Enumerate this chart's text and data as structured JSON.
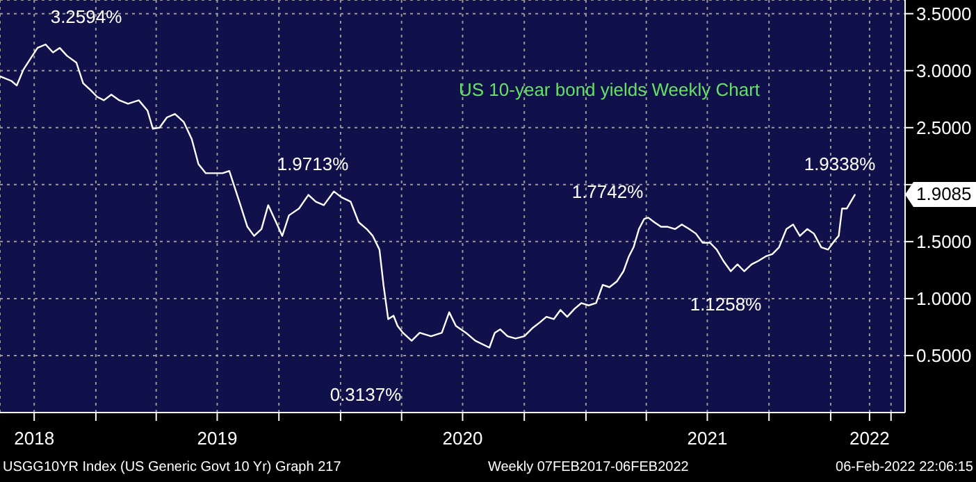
{
  "chart_data": {
    "type": "line",
    "title": "US 10-year bond yields Weekly Chart",
    "x": [
      "2018-08-11",
      "2018-08-28",
      "2018-09-05",
      "2018-09-15",
      "2018-09-26",
      "2018-10-06",
      "2018-10-18",
      "2018-10-29",
      "2018-11-08",
      "2018-11-19",
      "2018-12-03",
      "2018-12-13",
      "2018-12-24",
      "2019-01-03",
      "2019-01-13",
      "2019-01-24",
      "2019-02-05",
      "2019-02-18",
      "2019-03-06",
      "2019-03-19",
      "2019-03-27",
      "2019-04-06",
      "2019-04-17",
      "2019-04-29",
      "2019-05-12",
      "2019-05-24",
      "2019-06-03",
      "2019-06-14",
      "2019-06-28",
      "2019-07-09",
      "2019-07-19",
      "2019-08-03",
      "2019-08-15",
      "2019-08-25",
      "2019-09-05",
      "2019-09-15",
      "2019-09-26",
      "2019-10-06",
      "2019-10-16",
      "2019-10-31",
      "2019-11-14",
      "2019-11-25",
      "2019-12-07",
      "2019-12-22",
      "2020-01-02",
      "2020-01-16",
      "2020-01-28",
      "2020-02-09",
      "2020-02-18",
      "2020-02-28",
      "2020-03-05",
      "2020-03-12",
      "2020-03-20",
      "2020-03-26",
      "2020-04-03",
      "2020-04-16",
      "2020-04-28",
      "2020-05-15",
      "2020-05-31",
      "2020-06-11",
      "2020-06-21",
      "2020-07-06",
      "2020-07-20",
      "2020-08-10",
      "2020-08-18",
      "2020-08-26",
      "2020-09-06",
      "2020-09-18",
      "2020-10-01",
      "2020-10-13",
      "2020-10-24",
      "2020-11-03",
      "2020-11-14",
      "2020-11-24",
      "2020-12-04",
      "2020-12-15",
      "2020-12-25",
      "2021-01-05",
      "2021-01-16",
      "2021-01-26",
      "2021-02-05",
      "2021-02-16",
      "2021-02-26",
      "2021-03-06",
      "2021-03-13",
      "2021-03-21",
      "2021-03-29",
      "2021-04-04",
      "2021-04-13",
      "2021-04-23",
      "2021-05-03",
      "2021-05-14",
      "2021-05-24",
      "2021-06-04",
      "2021-06-14",
      "2021-06-24",
      "2021-07-05",
      "2021-07-15",
      "2021-07-25",
      "2021-08-05",
      "2021-08-15",
      "2021-08-25",
      "2021-09-05",
      "2021-09-15",
      "2021-09-26",
      "2021-10-06",
      "2021-10-16",
      "2021-10-27",
      "2021-11-06",
      "2021-11-16",
      "2021-11-27",
      "2021-12-07",
      "2021-12-18",
      "2021-12-28",
      "2022-01-07",
      "2022-01-13",
      "2022-01-18",
      "2022-01-25",
      "2022-01-31",
      "2022-02-06"
    ],
    "series": [
      {
        "color": "#ffffff",
        "values": [
          2.95,
          2.91,
          2.87,
          3.01,
          3.11,
          3.2,
          3.23,
          3.16,
          3.2,
          3.13,
          3.07,
          2.89,
          2.83,
          2.77,
          2.74,
          2.79,
          2.74,
          2.71,
          2.74,
          2.65,
          2.49,
          2.5,
          2.59,
          2.62,
          2.55,
          2.4,
          2.18,
          2.1,
          2.1,
          2.1,
          2.12,
          1.85,
          1.63,
          1.55,
          1.61,
          1.82,
          1.68,
          1.55,
          1.73,
          1.79,
          1.91,
          1.85,
          1.82,
          1.94,
          1.89,
          1.85,
          1.67,
          1.61,
          1.55,
          1.43,
          1.12,
          0.82,
          0.85,
          0.76,
          0.7,
          0.63,
          0.7,
          0.67,
          0.7,
          0.88,
          0.76,
          0.7,
          0.63,
          0.57,
          0.7,
          0.73,
          0.67,
          0.65,
          0.67,
          0.74,
          0.79,
          0.84,
          0.82,
          0.9,
          0.84,
          0.91,
          0.96,
          0.94,
          0.96,
          1.12,
          1.1,
          1.15,
          1.24,
          1.37,
          1.45,
          1.61,
          1.7,
          1.71,
          1.67,
          1.63,
          1.63,
          1.61,
          1.65,
          1.61,
          1.57,
          1.49,
          1.49,
          1.43,
          1.33,
          1.24,
          1.3,
          1.24,
          1.3,
          1.33,
          1.37,
          1.39,
          1.45,
          1.61,
          1.65,
          1.55,
          1.61,
          1.57,
          1.45,
          1.43,
          1.51,
          1.55,
          1.79,
          1.79,
          1.85,
          1.91
        ]
      }
    ],
    "xlim": [
      "2018-08-11",
      "2022-04-22"
    ],
    "xticks": [
      {
        "value": "2018-10-01",
        "label": "2018"
      },
      {
        "value": "2019-01-01",
        "label": null
      },
      {
        "value": "2019-04-01",
        "label": null
      },
      {
        "value": "2019-07-01",
        "label": "2019"
      },
      {
        "value": "2019-10-01",
        "label": null
      },
      {
        "value": "2020-01-01",
        "label": null
      },
      {
        "value": "2020-04-01",
        "label": null
      },
      {
        "value": "2020-07-01",
        "label": "2020"
      },
      {
        "value": "2020-10-01",
        "label": null
      },
      {
        "value": "2021-01-01",
        "label": null
      },
      {
        "value": "2021-04-01",
        "label": null
      },
      {
        "value": "2021-07-01",
        "label": "2021"
      },
      {
        "value": "2021-10-01",
        "label": null
      },
      {
        "value": "2022-01-01",
        "label": null
      },
      {
        "value": "2022-02-28",
        "label": "2022"
      },
      {
        "value": "2022-04-01",
        "label": null
      }
    ],
    "ylim": [
      0,
      3.62
    ],
    "yticks": [
      {
        "value": 0.5,
        "label": "0.5000"
      },
      {
        "value": 1,
        "label": "1.0000"
      },
      {
        "value": 1.5,
        "label": "1.5000"
      },
      {
        "value": 2,
        "label": null
      },
      {
        "value": 2.5,
        "label": "2.5000"
      },
      {
        "value": 3,
        "label": "3.0000"
      },
      {
        "value": 3.5,
        "label": "3.5000"
      }
    ],
    "grid": true,
    "annotations": [
      "3.2594%",
      "1.9713%",
      "0.3137%",
      "1.7742%",
      "1.1258%",
      "1.9338%",
      "1.9085",
      "USGG10YR Index (US Generic Govt 10 Yr) Graph 217",
      "Weekly 07FEB2017-06FEB2022",
      "06-Feb-2022 22:06:15"
    ]
  }
}
